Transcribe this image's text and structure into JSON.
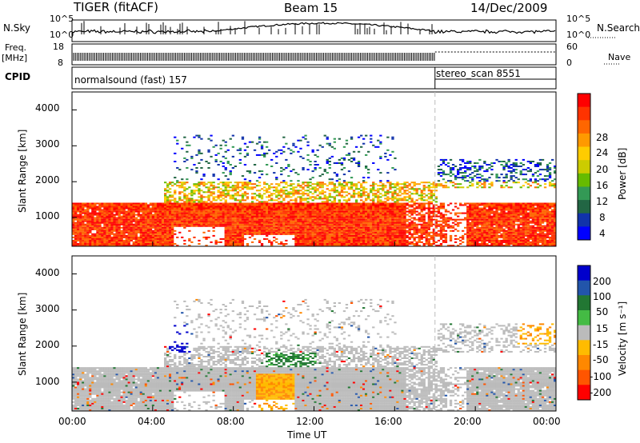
{
  "header": {
    "station": "TIGER (fitACF)",
    "beam": "Beam 15",
    "date": "14/Dec/2009"
  },
  "strip": {
    "nsky_label": "N.Sky",
    "nsearch_label": "N.Search",
    "freq_label_1": "Freq.",
    "freq_label_2": "[MHz]",
    "nave_label": "Nave",
    "cpid_label": "CPID",
    "nsky_ticks": [
      "10^5",
      "10^0"
    ],
    "nsearch_ticks": [
      "10^5",
      "10^0"
    ],
    "freq_ticks": [
      "18",
      "8"
    ],
    "nave_ticks": [
      "60",
      "0"
    ],
    "cpid_segments": [
      {
        "name": "normalsound (fast) 157",
        "start_h": 0,
        "end_h": 18.0
      },
      {
        "name": "stereo_scan 8551",
        "start_h": 18.0,
        "end_h": 24
      }
    ]
  },
  "chart_data": [
    {
      "type": "heatmap",
      "panel": "power",
      "xlabel": "",
      "ylabel": "Slant Range [km]",
      "xlim": [
        0,
        24
      ],
      "ylim": [
        200,
        4500
      ],
      "yticks": [
        "1000",
        "2000",
        "3000",
        "4000"
      ],
      "colorbar": {
        "label": "Power [dB]",
        "ticks": [
          "28",
          "24",
          "20",
          "16",
          "12",
          "8",
          "4"
        ],
        "colors": [
          "#ff0000",
          "#ff3300",
          "#ff6600",
          "#ff9900",
          "#ffcc00",
          "#cccc00",
          "#66bb00",
          "#339955",
          "#226644",
          "#1133aa",
          "#0000ff"
        ]
      }
    },
    {
      "type": "heatmap",
      "panel": "velocity",
      "xlabel": "Time UT",
      "ylabel": "Slant Range [km]",
      "xlim": [
        0,
        24
      ],
      "ylim": [
        200,
        4500
      ],
      "xticks": [
        "00:00",
        "04:00",
        "08:00",
        "12:00",
        "16:00",
        "20:00",
        "00:00"
      ],
      "yticks": [
        "1000",
        "2000",
        "3000",
        "4000"
      ],
      "colorbar": {
        "label": "Velocity [m s⁻¹]",
        "ticks": [
          "200",
          "100",
          "50",
          "15",
          "-15",
          "-50",
          "-100",
          "-200"
        ],
        "colors": [
          "#0000cc",
          "#2255aa",
          "#227733",
          "#44bb44",
          "#bbbbbb",
          "#ffbb00",
          "#ff8800",
          "#ff5500",
          "#ff0000"
        ]
      }
    }
  ]
}
